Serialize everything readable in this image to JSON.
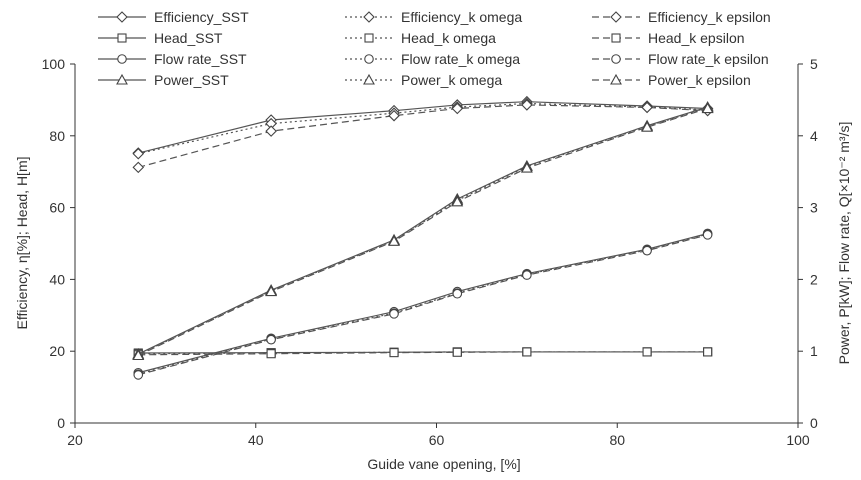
{
  "chart_data": {
    "type": "line",
    "xlabel": "Guide vane opening, [%]",
    "ylabel_left": "Efficiency, η[%]; Head, H[m]",
    "ylabel_right": "Power, P[kW]; Flow rate, Q[×10⁻² m³/s]",
    "xlim": [
      20,
      100
    ],
    "ylim_left": [
      0,
      100
    ],
    "ylim_right": [
      0,
      5
    ],
    "xticks": [
      "20",
      "40",
      "60",
      "80",
      "100"
    ],
    "yticks_left": [
      "0",
      "20",
      "40",
      "60",
      "80",
      "100"
    ],
    "yticks_right": [
      "0",
      "1",
      "2",
      "3",
      "4",
      "5"
    ],
    "grid": false,
    "legend_position": "top",
    "x": [
      27,
      41.7,
      55.3,
      62.3,
      70,
      83.3,
      90
    ],
    "series": [
      {
        "name": "Efficiency_SST",
        "axis": "left",
        "marker": "diamond",
        "dash": "solid",
        "values": [
          75.2,
          84.4,
          87.0,
          88.6,
          89.5,
          88.3,
          87.6
        ]
      },
      {
        "name": "Efficiency_k omega",
        "axis": "left",
        "marker": "diamond",
        "dash": "dotted",
        "values": [
          75.0,
          83.4,
          86.3,
          88.0,
          89.0,
          88.0,
          87.2
        ]
      },
      {
        "name": "Efficiency_k epsilon",
        "axis": "left",
        "marker": "diamond",
        "dash": "dashed",
        "values": [
          71.2,
          81.3,
          85.6,
          87.6,
          88.6,
          87.9,
          87.0
        ]
      },
      {
        "name": "Head_SST",
        "axis": "left",
        "marker": "square",
        "dash": "solid",
        "values": [
          19.5,
          19.6,
          19.7,
          19.8,
          19.8,
          19.8,
          19.8
        ]
      },
      {
        "name": "Head_k omega",
        "axis": "left",
        "marker": "square",
        "dash": "dotted",
        "values": [
          19.3,
          19.5,
          19.7,
          19.8,
          19.8,
          19.8,
          19.8
        ]
      },
      {
        "name": "Head_k epsilon",
        "axis": "left",
        "marker": "square",
        "dash": "dashed",
        "values": [
          19.0,
          19.3,
          19.6,
          19.7,
          19.8,
          19.8,
          19.8
        ]
      },
      {
        "name": "Flow rate_SST",
        "axis": "right",
        "marker": "circle",
        "dash": "solid",
        "values": [
          0.7,
          1.18,
          1.55,
          1.83,
          2.08,
          2.42,
          2.64
        ]
      },
      {
        "name": "Flow rate_k omega",
        "axis": "right",
        "marker": "circle",
        "dash": "dotted",
        "values": [
          0.68,
          1.17,
          1.53,
          1.81,
          2.07,
          2.41,
          2.63
        ]
      },
      {
        "name": "Flow rate_k epsilon",
        "axis": "right",
        "marker": "circle",
        "dash": "dashed",
        "values": [
          0.67,
          1.16,
          1.52,
          1.8,
          2.06,
          2.4,
          2.62
        ]
      },
      {
        "name": "Power_SST",
        "axis": "right",
        "marker": "triangle",
        "dash": "solid",
        "values": [
          0.96,
          1.85,
          2.55,
          3.12,
          3.58,
          4.14,
          4.4
        ]
      },
      {
        "name": "Power_k omega",
        "axis": "right",
        "marker": "triangle",
        "dash": "dotted",
        "values": [
          0.95,
          1.84,
          2.54,
          3.1,
          3.57,
          4.13,
          4.39
        ]
      },
      {
        "name": "Power_k epsilon",
        "axis": "right",
        "marker": "triangle",
        "dash": "dashed",
        "values": [
          0.94,
          1.83,
          2.53,
          3.08,
          3.55,
          4.12,
          4.38
        ]
      }
    ]
  }
}
